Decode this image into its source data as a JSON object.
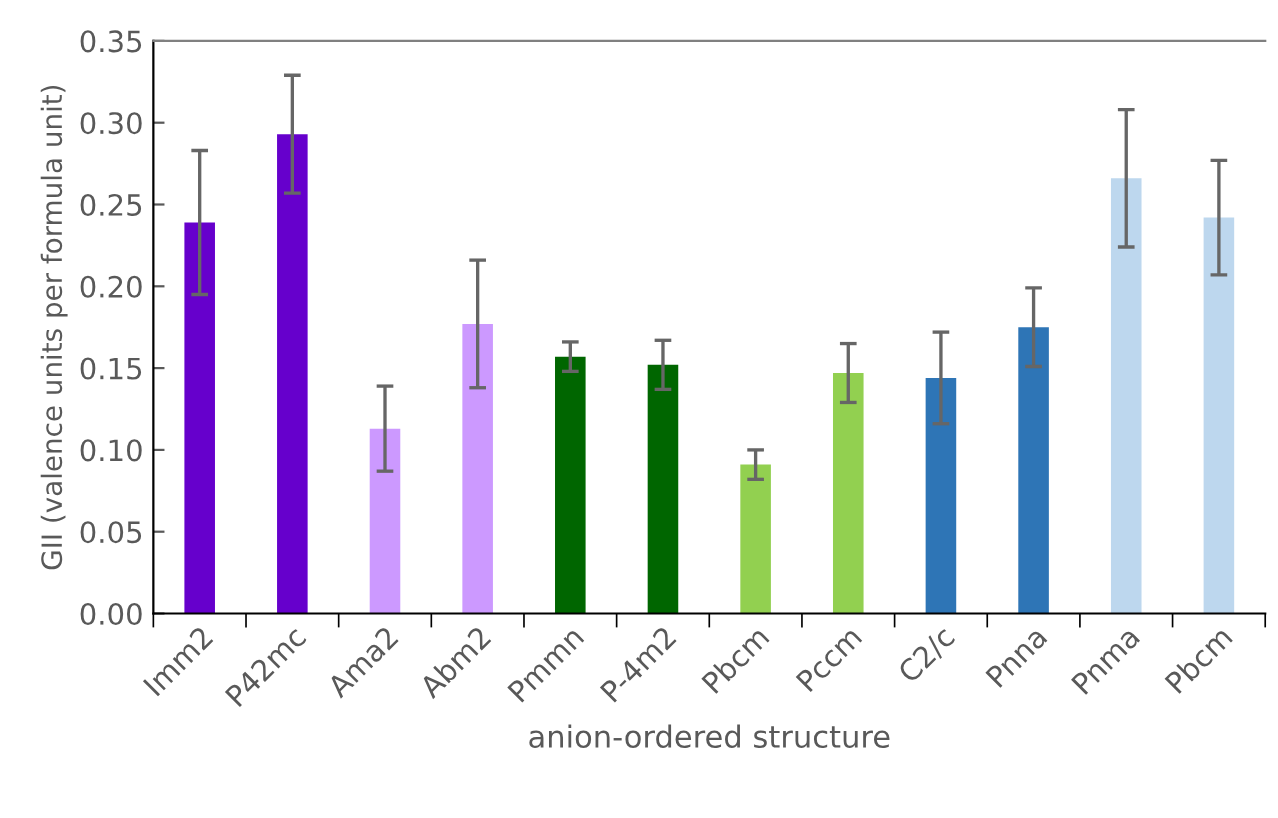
{
  "chart_data": {
    "type": "bar",
    "xlabel": "anion-ordered structure",
    "ylabel": "GII (valence units per formula unit)",
    "categories": [
      "Imm2",
      "P42mc",
      "Ama2",
      "Abm2",
      "Pmmn",
      "P-4m2",
      "Pbcm",
      "Pccm",
      "C2/c",
      "Pnna",
      "Pnma",
      "Pbcm"
    ],
    "values": [
      0.239,
      0.293,
      0.113,
      0.177,
      0.157,
      0.152,
      0.091,
      0.147,
      0.144,
      0.175,
      0.266,
      0.242
    ],
    "errors": [
      0.044,
      0.036,
      0.026,
      0.039,
      0.009,
      0.015,
      0.009,
      0.018,
      0.028,
      0.024,
      0.042,
      0.035
    ],
    "colors": [
      "#6600cc",
      "#6600cc",
      "#cc99ff",
      "#cc99ff",
      "#006600",
      "#006600",
      "#92d050",
      "#92d050",
      "#2e75b6",
      "#2e75b6",
      "#bdd7ee",
      "#bdd7ee"
    ],
    "ylim": [
      0,
      0.35
    ],
    "yticks": [
      {
        "value": 0,
        "label": "0.00"
      },
      {
        "value": 0.05,
        "label": "0.05"
      },
      {
        "value": 0.1,
        "label": "0.10"
      },
      {
        "value": 0.15,
        "label": "0.15"
      },
      {
        "value": 0.2,
        "label": "0.20"
      },
      {
        "value": 0.25,
        "label": "0.25"
      },
      {
        "value": 0.3,
        "label": "0.30"
      },
      {
        "value": 0.35,
        "label": "0.35"
      }
    ],
    "grid": false
  }
}
